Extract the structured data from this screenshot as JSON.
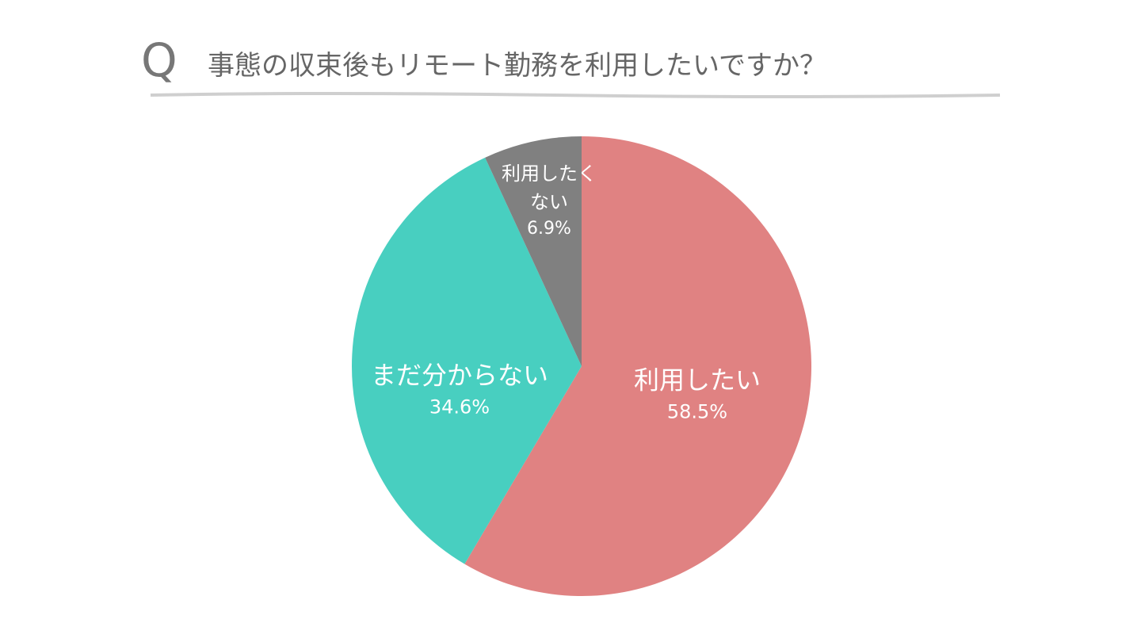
{
  "chart_data": {
    "type": "pie",
    "title_prefix": "Q",
    "title": "事態の収束後もリモート勤務を利用したいですか？",
    "categories": [
      "利用したい",
      "まだ分からない",
      "利用したく\nない"
    ],
    "values": [
      58.5,
      34.6,
      6.9
    ],
    "value_labels": [
      "58.5%",
      "34.6%",
      "6.9%"
    ],
    "colors": [
      "#e08282",
      "#48cfc0",
      "#808080"
    ]
  }
}
